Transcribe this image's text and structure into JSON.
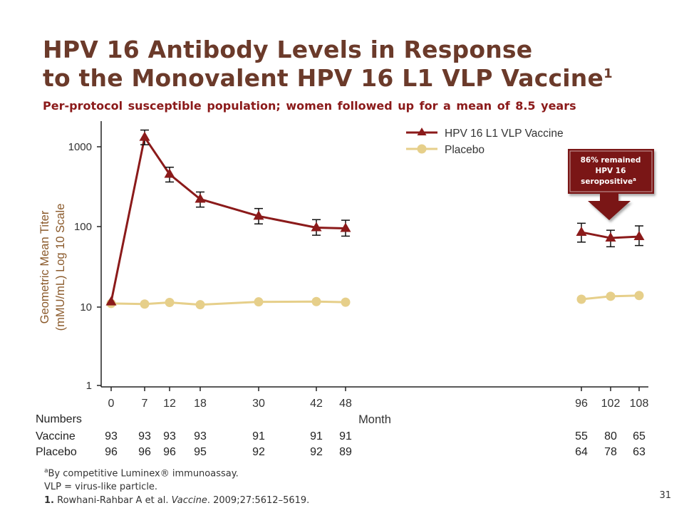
{
  "slide": {
    "title_line1": "HPV 16 Antibody Levels in Response",
    "title_line2": "to the Monovalent HPV 16 L1 VLP Vaccine",
    "title_sup": "1",
    "subtitle": "Per-protocol susceptible population; women followed up for a mean of 8.5 years",
    "page_number": "31"
  },
  "callout": {
    "line1": "86% remained",
    "line2": "HPV 16",
    "line3": "seropositive",
    "sup": "a"
  },
  "numbers_table": {
    "header": "Numbers",
    "rows": [
      {
        "label": "Vaccine",
        "values": [
          "93",
          "93",
          "93",
          "93",
          "91",
          "91",
          "91",
          "55",
          "80",
          "65"
        ]
      },
      {
        "label": "Placebo",
        "values": [
          "96",
          "96",
          "96",
          "95",
          "92",
          "92",
          "89",
          "64",
          "78",
          "63"
        ]
      }
    ]
  },
  "footnotes": {
    "a_sup": "a",
    "a_text": "By competitive Luminex® immunoassay.",
    "vlp": "VLP = virus-like particle.",
    "ref_num": "1.",
    "ref_authors": "Rowhani-Rahbar A et al.",
    "ref_journal": "Vaccine",
    "ref_rest": ". 2009;27:5612–5619."
  },
  "chart_data": {
    "type": "line",
    "ylabel_line1": "Geometric Mean Titer",
    "ylabel_line2": "(mMU/mL)  Log 10 Scale",
    "xlabel": "Month",
    "y_scale": "log10",
    "ylim": [
      1,
      1500
    ],
    "y_ticks": [
      1,
      10,
      100,
      1000
    ],
    "x_ticks": [
      0,
      7,
      12,
      18,
      30,
      42,
      48,
      96,
      102,
      108
    ],
    "legend_position": "top-right",
    "series": [
      {
        "name": "HPV 16 L1 VLP Vaccine",
        "color": "#8b1a1a",
        "marker": "triangle",
        "x": [
          0,
          7,
          12,
          18,
          30,
          42,
          48,
          96,
          102,
          108
        ],
        "y": [
          11.5,
          1300,
          450,
          220,
          135,
          97,
          95,
          85,
          72,
          75
        ],
        "err_low": [
          null,
          1050,
          360,
          175,
          108,
          78,
          76,
          64,
          56,
          58
        ],
        "err_high": [
          null,
          1600,
          550,
          270,
          168,
          122,
          120,
          110,
          90,
          102
        ]
      },
      {
        "name": "Placebo",
        "color": "#e6cf8a",
        "marker": "circle",
        "x": [
          0,
          7,
          12,
          18,
          30,
          42,
          48,
          96,
          102,
          108
        ],
        "y": [
          11,
          10.8,
          11.3,
          10.6,
          11.5,
          11.6,
          11.4,
          12.4,
          13.5,
          13.8
        ]
      }
    ]
  }
}
